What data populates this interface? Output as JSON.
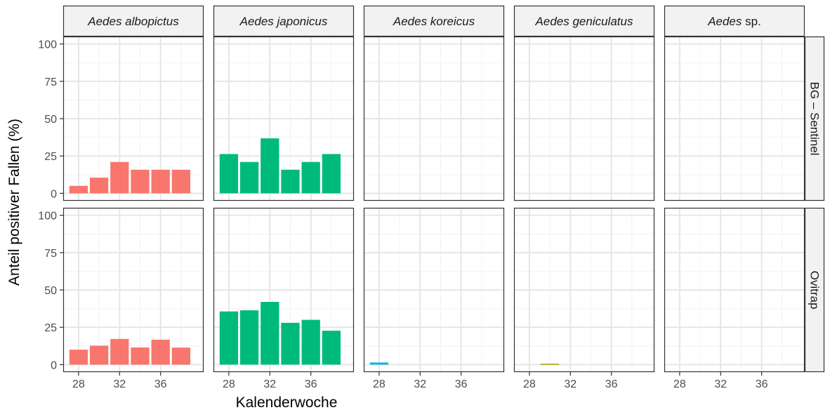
{
  "chart_data": {
    "type": "bar",
    "facet": "grid",
    "xlabel": "Kalenderwoche",
    "ylabel": "Anteil positiver Fallen (%)",
    "xlim": [
      26.5,
      40.2
    ],
    "ylim": [
      -5,
      105
    ],
    "x_ticks": [
      28,
      32,
      36
    ],
    "y_ticks": [
      0,
      25,
      50,
      75,
      100
    ],
    "grid": true,
    "columns": [
      {
        "label": "Aedes albopictus",
        "color": "#F8766D"
      },
      {
        "label": "Aedes japonicus",
        "color": "#00BA7C"
      },
      {
        "label": "Aedes koreicus",
        "color": "#00B4E6"
      },
      {
        "label": "Aedes geniculatus",
        "color": "#9EA400"
      },
      {
        "label": "Aedes sp.",
        "label_italic": "Aedes",
        "label_plain": " sp.",
        "color": "#C77CFF"
      }
    ],
    "rows": [
      {
        "label": "BG – Sentinel"
      },
      {
        "label": "Ovitrap"
      }
    ],
    "panels": [
      {
        "row": 0,
        "col": 0,
        "x": [
          28,
          30,
          32,
          34,
          36,
          38
        ],
        "values": [
          5,
          10.5,
          21,
          15.8,
          15.8,
          15.8
        ]
      },
      {
        "row": 0,
        "col": 1,
        "x": [
          28,
          30,
          32,
          34,
          36,
          38
        ],
        "values": [
          26.3,
          21,
          36.8,
          15.8,
          21,
          26.3
        ]
      },
      {
        "row": 0,
        "col": 2,
        "x": [],
        "values": []
      },
      {
        "row": 0,
        "col": 3,
        "x": [],
        "values": []
      },
      {
        "row": 0,
        "col": 4,
        "x": [],
        "values": []
      },
      {
        "row": 1,
        "col": 0,
        "x": [
          28,
          30,
          32,
          34,
          36,
          38
        ],
        "values": [
          10,
          12.7,
          17.2,
          11.5,
          16.7,
          11.4
        ]
      },
      {
        "row": 1,
        "col": 1,
        "x": [
          28,
          30,
          32,
          34,
          36,
          38
        ],
        "values": [
          35.6,
          36.4,
          42,
          28,
          30,
          22.7
        ]
      },
      {
        "row": 1,
        "col": 2,
        "x": [
          28
        ],
        "values": [
          1.4
        ]
      },
      {
        "row": 1,
        "col": 3,
        "x": [
          30
        ],
        "values": [
          0.6
        ]
      },
      {
        "row": 1,
        "col": 4,
        "x": [],
        "values": []
      }
    ]
  }
}
